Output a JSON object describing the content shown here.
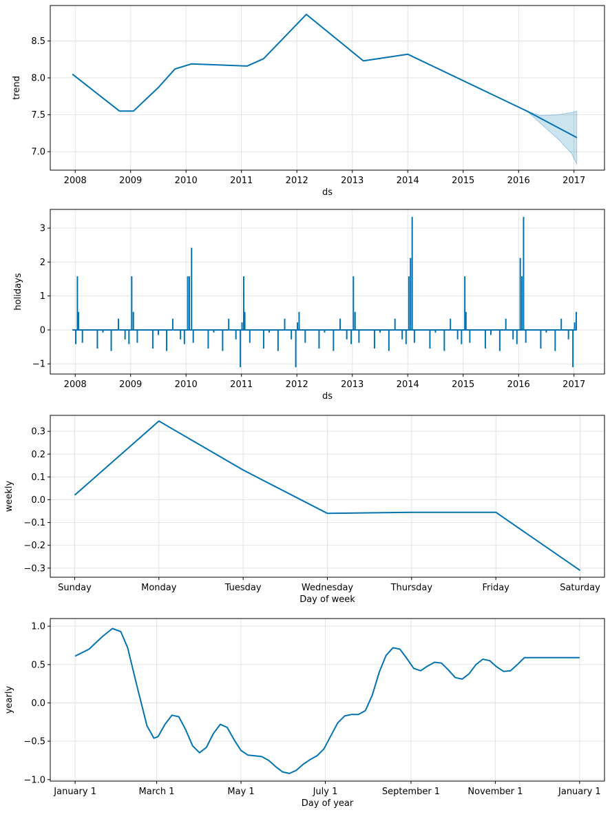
{
  "chart_data": [
    {
      "id": "trend",
      "type": "line",
      "xlabel": "ds",
      "ylabel": "trend",
      "xlim": [
        2007.55,
        2017.55
      ],
      "ylim": [
        6.75,
        8.98
      ],
      "xticks": [
        2008,
        2009,
        2010,
        2011,
        2012,
        2013,
        2014,
        2015,
        2016,
        2017
      ],
      "xtick_labels": [
        "2008",
        "2009",
        "2010",
        "2011",
        "2012",
        "2013",
        "2014",
        "2015",
        "2016",
        "2017"
      ],
      "yticks": [
        7.0,
        7.5,
        8.0,
        8.5
      ],
      "ytick_labels": [
        "7.0",
        "7.5",
        "8.0",
        "8.5"
      ],
      "x": [
        2007.95,
        2008.8,
        2009.05,
        2009.5,
        2009.8,
        2010.1,
        2011.1,
        2011.4,
        2012.17,
        2013.2,
        2014.0,
        2016.15,
        2017.05
      ],
      "y": [
        8.05,
        7.55,
        7.55,
        7.87,
        8.12,
        8.19,
        8.16,
        8.26,
        8.86,
        8.23,
        8.32,
        7.55,
        7.19
      ],
      "uncertainty": {
        "x": [
          2016.15,
          2016.4,
          2016.7,
          2016.95,
          2017.05
        ],
        "upper": [
          7.55,
          7.49,
          7.5,
          7.53,
          7.55
        ],
        "lower": [
          7.55,
          7.38,
          7.18,
          6.98,
          6.83
        ]
      },
      "grid": true
    },
    {
      "id": "holidays",
      "type": "line",
      "xlabel": "ds",
      "ylabel": "holidays",
      "xlim": [
        2007.55,
        2017.55
      ],
      "ylim": [
        -1.3,
        3.55
      ],
      "xticks": [
        2008,
        2009,
        2010,
        2011,
        2012,
        2013,
        2014,
        2015,
        2016,
        2017
      ],
      "xtick_labels": [
        "2008",
        "2009",
        "2010",
        "2011",
        "2012",
        "2013",
        "2014",
        "2015",
        "2016",
        "2017"
      ],
      "yticks": [
        -1,
        0,
        1,
        2,
        3
      ],
      "ytick_labels": [
        "−1",
        "0",
        "1",
        "2",
        "3"
      ],
      "baseline": 0,
      "baseline_range": [
        2007.95,
        2017.05
      ],
      "spikes": [
        {
          "x": 2008.01,
          "y": -0.42
        },
        {
          "x": 2008.04,
          "y": 1.58
        },
        {
          "x": 2008.06,
          "y": 0.53
        },
        {
          "x": 2008.13,
          "y": -0.38
        },
        {
          "x": 2008.4,
          "y": -0.55
        },
        {
          "x": 2008.5,
          "y": -0.08
        },
        {
          "x": 2008.65,
          "y": -0.62
        },
        {
          "x": 2008.78,
          "y": 0.33
        },
        {
          "x": 2008.9,
          "y": -0.28
        },
        {
          "x": 2008.97,
          "y": -0.42
        },
        {
          "x": 2009.02,
          "y": 1.58
        },
        {
          "x": 2009.05,
          "y": 0.53
        },
        {
          "x": 2009.12,
          "y": -0.38
        },
        {
          "x": 2009.4,
          "y": -0.55
        },
        {
          "x": 2009.5,
          "y": -0.15
        },
        {
          "x": 2009.65,
          "y": -0.62
        },
        {
          "x": 2009.76,
          "y": 0.33
        },
        {
          "x": 2009.9,
          "y": -0.28
        },
        {
          "x": 2009.97,
          "y": -0.42
        },
        {
          "x": 2010.03,
          "y": 1.58
        },
        {
          "x": 2010.06,
          "y": 1.58
        },
        {
          "x": 2010.1,
          "y": 2.42
        },
        {
          "x": 2010.13,
          "y": -0.38
        },
        {
          "x": 2010.4,
          "y": -0.55
        },
        {
          "x": 2010.5,
          "y": -0.08
        },
        {
          "x": 2010.66,
          "y": -0.62
        },
        {
          "x": 2010.77,
          "y": 0.33
        },
        {
          "x": 2010.9,
          "y": -0.28
        },
        {
          "x": 2010.98,
          "y": -1.1
        },
        {
          "x": 2011.01,
          "y": 0.22
        },
        {
          "x": 2011.04,
          "y": 1.58
        },
        {
          "x": 2011.06,
          "y": 0.53
        },
        {
          "x": 2011.15,
          "y": -0.38
        },
        {
          "x": 2011.4,
          "y": -0.55
        },
        {
          "x": 2011.5,
          "y": -0.08
        },
        {
          "x": 2011.66,
          "y": -0.62
        },
        {
          "x": 2011.78,
          "y": 0.33
        },
        {
          "x": 2011.9,
          "y": -0.28
        },
        {
          "x": 2011.98,
          "y": -1.1
        },
        {
          "x": 2012.01,
          "y": 0.22
        },
        {
          "x": 2012.04,
          "y": 0.53
        },
        {
          "x": 2012.15,
          "y": -0.38
        },
        {
          "x": 2012.4,
          "y": -0.55
        },
        {
          "x": 2012.5,
          "y": -0.08
        },
        {
          "x": 2012.66,
          "y": -0.62
        },
        {
          "x": 2012.78,
          "y": 0.33
        },
        {
          "x": 2012.9,
          "y": -0.28
        },
        {
          "x": 2012.98,
          "y": -0.42
        },
        {
          "x": 2013.02,
          "y": 1.58
        },
        {
          "x": 2013.05,
          "y": 0.53
        },
        {
          "x": 2013.12,
          "y": -0.38
        },
        {
          "x": 2013.4,
          "y": -0.55
        },
        {
          "x": 2013.5,
          "y": -0.08
        },
        {
          "x": 2013.66,
          "y": -0.62
        },
        {
          "x": 2013.77,
          "y": 0.33
        },
        {
          "x": 2013.9,
          "y": -0.28
        },
        {
          "x": 2013.97,
          "y": -0.42
        },
        {
          "x": 2014.02,
          "y": 1.58
        },
        {
          "x": 2014.05,
          "y": 2.12
        },
        {
          "x": 2014.08,
          "y": 3.33
        },
        {
          "x": 2014.12,
          "y": -0.38
        },
        {
          "x": 2014.4,
          "y": -0.55
        },
        {
          "x": 2014.5,
          "y": -0.08
        },
        {
          "x": 2014.66,
          "y": -0.62
        },
        {
          "x": 2014.77,
          "y": 0.33
        },
        {
          "x": 2014.9,
          "y": -0.28
        },
        {
          "x": 2014.97,
          "y": -0.42
        },
        {
          "x": 2015.03,
          "y": 1.58
        },
        {
          "x": 2015.05,
          "y": 0.53
        },
        {
          "x": 2015.12,
          "y": -0.38
        },
        {
          "x": 2015.4,
          "y": -0.55
        },
        {
          "x": 2015.5,
          "y": -0.15
        },
        {
          "x": 2015.66,
          "y": -0.62
        },
        {
          "x": 2015.77,
          "y": 0.33
        },
        {
          "x": 2015.9,
          "y": -0.28
        },
        {
          "x": 2015.97,
          "y": -0.42
        },
        {
          "x": 2016.03,
          "y": 2.12
        },
        {
          "x": 2016.06,
          "y": 1.58
        },
        {
          "x": 2016.09,
          "y": 3.33
        },
        {
          "x": 2016.13,
          "y": -0.38
        },
        {
          "x": 2016.4,
          "y": -0.55
        },
        {
          "x": 2016.5,
          "y": -0.08
        },
        {
          "x": 2016.66,
          "y": -0.62
        },
        {
          "x": 2016.77,
          "y": 0.33
        },
        {
          "x": 2016.9,
          "y": -0.28
        },
        {
          "x": 2016.98,
          "y": -1.1
        },
        {
          "x": 2017.01,
          "y": 0.22
        },
        {
          "x": 2017.04,
          "y": 0.53
        }
      ],
      "grid": true
    },
    {
      "id": "weekly",
      "type": "line",
      "xlabel": "Day of week",
      "ylabel": "weekly",
      "xlim": [
        -0.29,
        6.29
      ],
      "ylim": [
        -0.34,
        0.37
      ],
      "xticks": [
        0,
        1,
        2,
        3,
        4,
        5,
        6
      ],
      "xtick_labels": [
        "Sunday",
        "Monday",
        "Tuesday",
        "Wednesday",
        "Thursday",
        "Friday",
        "Saturday"
      ],
      "yticks": [
        -0.3,
        -0.2,
        -0.1,
        0.0,
        0.1,
        0.2,
        0.3
      ],
      "ytick_labels": [
        "−0.3",
        "−0.2",
        "−0.1",
        "0.0",
        "0.1",
        "0.2",
        "0.3"
      ],
      "x": [
        0,
        1,
        2,
        3,
        4,
        5,
        6
      ],
      "y": [
        0.02,
        0.345,
        0.13,
        -0.06,
        -0.055,
        -0.055,
        -0.31
      ],
      "grid": true
    },
    {
      "id": "yearly",
      "type": "line",
      "xlabel": "Day of year",
      "ylabel": "yearly",
      "xlim": [
        -18,
        383
      ],
      "ylim": [
        -1.02,
        1.1
      ],
      "xticks": [
        0,
        59,
        120,
        181,
        243,
        304,
        365
      ],
      "xtick_labels": [
        "January 1",
        "March 1",
        "May 1",
        "July 1",
        "September 1",
        "November 1",
        "January 1"
      ],
      "yticks": [
        -1.0,
        -0.5,
        0.0,
        0.5,
        1.0
      ],
      "ytick_labels": [
        "−1.0",
        "−0.5",
        "0.0",
        "0.5",
        "1.0"
      ],
      "x": [
        0,
        10,
        20,
        27,
        33,
        38,
        45,
        52,
        57,
        60,
        65,
        70,
        75,
        80,
        85,
        90,
        95,
        100,
        105,
        110,
        115,
        120,
        125,
        130,
        135,
        140,
        145,
        150,
        155,
        160,
        165,
        170,
        175,
        180,
        185,
        190,
        195,
        200,
        205,
        210,
        215,
        220,
        225,
        230,
        235,
        240,
        245,
        250,
        255,
        260,
        265,
        270,
        275,
        280,
        285,
        290,
        295,
        300,
        305,
        310,
        315,
        320,
        325,
        330,
        335,
        340,
        345,
        350,
        355,
        360,
        365
      ],
      "y": [
        0.61,
        0.7,
        0.87,
        0.97,
        0.93,
        0.72,
        0.2,
        -0.3,
        -0.46,
        -0.44,
        -0.28,
        -0.16,
        -0.18,
        -0.35,
        -0.56,
        -0.65,
        -0.58,
        -0.4,
        -0.28,
        -0.32,
        -0.48,
        -0.62,
        -0.68,
        -0.69,
        -0.7,
        -0.75,
        -0.83,
        -0.9,
        -0.92,
        -0.88,
        -0.8,
        -0.74,
        -0.69,
        -0.6,
        -0.43,
        -0.26,
        -0.17,
        -0.15,
        -0.15,
        -0.1,
        0.1,
        0.4,
        0.62,
        0.72,
        0.7,
        0.58,
        0.45,
        0.42,
        0.48,
        0.53,
        0.52,
        0.43,
        0.33,
        0.31,
        0.38,
        0.5,
        0.57,
        0.55,
        0.47,
        0.41,
        0.42,
        0.5,
        0.59,
        0.59,
        0.59,
        0.59,
        0.59,
        0.59,
        0.59,
        0.59,
        0.59
      ],
      "grid": true
    }
  ]
}
